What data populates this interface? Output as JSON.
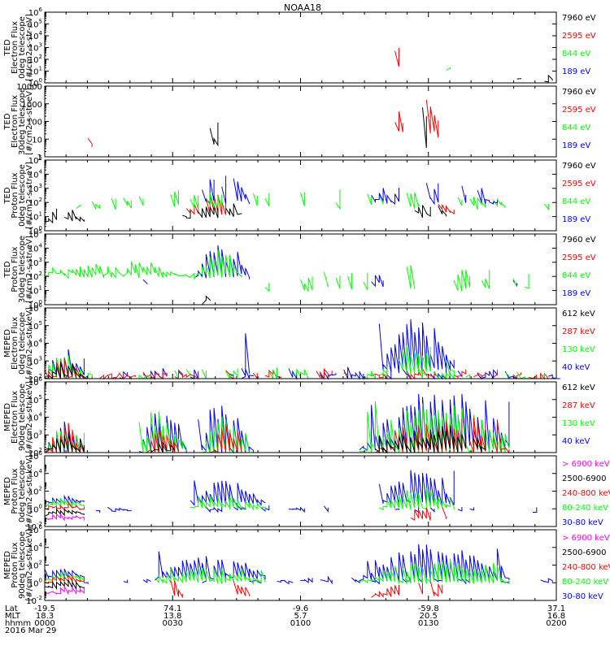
{
  "title": "NOAA18",
  "colors": {
    "black": "#000000",
    "red": "#ff0000",
    "green": "#00ff00",
    "blue": "#0000ff",
    "magenta": "#ff00ff"
  },
  "footer": {
    "row_labels": [
      "Lat",
      "MLT",
      "hhmm",
      "2016 Mar 29"
    ],
    "columns": [
      {
        "lat": "-19.5",
        "mlt": "18.3",
        "hhmm": "0000"
      },
      {
        "lat": "74.1",
        "mlt": "13.8",
        "hhmm": "0030"
      },
      {
        "lat": "-9.6",
        "mlt": "5.7",
        "hhmm": "0100"
      },
      {
        "lat": "-59.8",
        "mlt": "20.5",
        "hhmm": "0130"
      },
      {
        "lat": "37.1",
        "mlt": "16.8",
        "hhmm": "0200"
      }
    ]
  },
  "chart_data": [
    {
      "type": "line",
      "panel": "ted-electron-0deg",
      "log": true,
      "ylim": [
        1,
        1000000
      ],
      "ytick_labels": [
        "10^0",
        "10^1",
        "10^2",
        "10^3",
        "10^4",
        "10^5",
        "10^6"
      ],
      "ylabel": [
        "TED",
        "Electron Flux",
        "0deg telescope",
        "[#/cm2-s-str-eV]"
      ],
      "legend": [
        {
          "label": "7960 eV",
          "color": "black"
        },
        {
          "label": "2595 eV",
          "color": "red"
        },
        {
          "label": "844 eV",
          "color": "green"
        },
        {
          "label": "189 eV",
          "color": "blue"
        }
      ],
      "segments": [
        {
          "color": "black",
          "x0": 0,
          "x1": 10,
          "peak": 1.8,
          "base": 0.3,
          "sparse": 0.9
        },
        {
          "color": "black",
          "x0": 39,
          "x1": 50,
          "peak": 1.8,
          "base": 0.6,
          "sparse": 0.8
        },
        {
          "color": "green",
          "x0": 41,
          "x1": 49,
          "peak": 2.3,
          "base": 1.0,
          "sparse": 0.7
        },
        {
          "color": "red",
          "x0": 41,
          "x1": 49,
          "peak": 3.1,
          "base": 1.3,
          "sparse": 0.7
        },
        {
          "color": "black",
          "x0": 85,
          "x1": 103,
          "peak": 2.1,
          "base": 0.6,
          "sparse": 0.7
        },
        {
          "color": "green",
          "x0": 85,
          "x1": 103,
          "peak": 2.8,
          "base": 1.0,
          "sparse": 0.7
        },
        {
          "color": "red",
          "x0": 85,
          "x1": 103,
          "peak": 4.3,
          "base": 1.2,
          "sparse": 0.7
        },
        {
          "color": "black",
          "x0": 120,
          "x1": 131,
          "peak": 0.6,
          "base": 0.1,
          "sparse": 0.2
        }
      ]
    },
    {
      "type": "line",
      "panel": "ted-electron-30deg",
      "log": true,
      "ylim": [
        1,
        10000
      ],
      "ytick_labels": [
        "1",
        "10",
        "100",
        "1000",
        "10000"
      ],
      "ylabel": [
        "TED",
        "Electron Flux",
        "30deg telescope",
        "[#/cm2-s-str-eV]"
      ],
      "legend": [
        {
          "label": "7960 eV",
          "color": "black"
        },
        {
          "label": "2595 eV",
          "color": "red"
        },
        {
          "label": "844 eV",
          "color": "green"
        },
        {
          "label": "189 eV",
          "color": "blue"
        }
      ],
      "segments": [
        {
          "color": "red",
          "x0": 6,
          "x1": 12,
          "peak": 1.3,
          "base": 0.8,
          "sparse": 0.6
        },
        {
          "color": "black",
          "x0": 6,
          "x1": 20,
          "peak": 1.0,
          "base": 0.4,
          "sparse": 0.7
        },
        {
          "color": "green",
          "x0": 39,
          "x1": 49,
          "peak": 2.1,
          "base": 1.0,
          "sparse": 0.7
        },
        {
          "color": "red",
          "x0": 39,
          "x1": 50,
          "peak": 2.4,
          "base": 1.3,
          "sparse": 0.7
        },
        {
          "color": "black",
          "x0": 39,
          "x1": 49,
          "peak": 1.8,
          "base": 0.5,
          "sparse": 0.7
        },
        {
          "color": "green",
          "x0": 85,
          "x1": 103,
          "peak": 2.7,
          "base": 1.0,
          "sparse": 0.7
        },
        {
          "color": "red",
          "x0": 85,
          "x1": 103,
          "peak": 3.3,
          "base": 1.2,
          "sparse": 0.7
        },
        {
          "color": "black",
          "x0": 85,
          "x1": 103,
          "peak": 2.9,
          "base": 0.6,
          "sparse": 0.7
        }
      ]
    },
    {
      "type": "line",
      "panel": "ted-proton-0deg",
      "log": true,
      "ylim": [
        1,
        100000
      ],
      "ytick_labels": [
        "10^0",
        "10^1",
        "10^2",
        "10^3",
        "10^4",
        "10^5"
      ],
      "ylabel": [
        "TED",
        "Proton Flux",
        "0deg telescope",
        "[#/cm2-s-str-eV]"
      ],
      "legend": [
        {
          "label": "7960 eV",
          "color": "black"
        },
        {
          "label": "2595 eV",
          "color": "red"
        },
        {
          "label": "844 eV",
          "color": "green"
        },
        {
          "label": "189 eV",
          "color": "blue"
        }
      ],
      "segments": [
        {
          "color": "blue",
          "x0": 0,
          "x1": 70,
          "peak": 2.6,
          "base": 1.6,
          "sparse": 0.8
        },
        {
          "color": "black",
          "x0": 0,
          "x1": 10,
          "peak": 1.6,
          "base": 0.6,
          "sparse": 0.2
        },
        {
          "color": "red",
          "x0": 35,
          "x1": 50,
          "peak": 2.6,
          "base": 1.2,
          "sparse": 0.3
        },
        {
          "color": "black",
          "x0": 35,
          "x1": 50,
          "peak": 2.0,
          "base": 1.0,
          "sparse": 0.3
        },
        {
          "color": "blue",
          "x0": 38,
          "x1": 52,
          "peak": 4.4,
          "base": 2.0,
          "sparse": 0.1
        },
        {
          "color": "green",
          "x0": 0,
          "x1": 131,
          "peak": 2.9,
          "base": 1.6,
          "sparse": 0.5
        },
        {
          "color": "blue",
          "x0": 83,
          "x1": 115,
          "peak": 3.6,
          "base": 2.0,
          "sparse": 0.3
        },
        {
          "color": "red",
          "x0": 85,
          "x1": 104,
          "peak": 2.3,
          "base": 1.3,
          "sparse": 0.4
        },
        {
          "color": "black",
          "x0": 88,
          "x1": 104,
          "peak": 1.8,
          "base": 1.0,
          "sparse": 0.4
        }
      ]
    },
    {
      "type": "line",
      "panel": "ted-proton-30deg",
      "log": true,
      "ylim": [
        1,
        100000
      ],
      "ytick_labels": [
        "10^0",
        "10^1",
        "10^2",
        "10^3",
        "10^4",
        "10^5"
      ],
      "ylabel": [
        "TED",
        "Proton Flux",
        "30deg telescope",
        "[#/cm2-s-str-eV]"
      ],
      "legend": [
        {
          "label": "7960 eV",
          "color": "black"
        },
        {
          "label": "2595 eV",
          "color": "red"
        },
        {
          "label": "844 eV",
          "color": "green"
        },
        {
          "label": "189 eV",
          "color": "blue"
        }
      ],
      "segments": [
        {
          "color": "blue",
          "x0": 0,
          "x1": 131,
          "peak": 2.0,
          "base": 1.3,
          "sparse": 0.85
        },
        {
          "color": "green",
          "x0": 0,
          "x1": 38,
          "peak": 3.0,
          "base": 2.0,
          "sparse": 0.0
        },
        {
          "color": "blue",
          "x0": 38,
          "x1": 52,
          "peak": 4.6,
          "base": 2.0,
          "sparse": 0.0
        },
        {
          "color": "green",
          "x0": 38,
          "x1": 50,
          "peak": 4.0,
          "base": 2.0,
          "sparse": 0.0
        },
        {
          "color": "green",
          "x0": 52,
          "x1": 131,
          "peak": 2.8,
          "base": 1.0,
          "sparse": 0.55
        },
        {
          "color": "black",
          "x0": 40,
          "x1": 42,
          "peak": 0.6,
          "base": 0.2,
          "sparse": 0.0
        },
        {
          "color": "black",
          "x0": 94,
          "x1": 98,
          "peak": 0.6,
          "base": 0.2,
          "sparse": 0.3
        }
      ]
    },
    {
      "type": "line",
      "panel": "meped-electron-0deg",
      "log": true,
      "ylim": [
        100,
        1000000
      ],
      "ytick_labels": [
        "10^2",
        "10^3",
        "10^4",
        "10^5",
        "10^6"
      ],
      "ylabel": [
        "MEPED",
        "Electron Flux",
        "0deg telescope",
        "[#/cm2-s-str-keV]"
      ],
      "legend": [
        {
          "label": "612 keV",
          "color": "black"
        },
        {
          "label": "287 keV",
          "color": "red"
        },
        {
          "label": "130 keV",
          "color": "green"
        },
        {
          "label": "40 keV",
          "color": "blue"
        }
      ],
      "segments": [
        {
          "color": "blue",
          "x0": 0,
          "x1": 10,
          "peak": 3.8,
          "base": 2.2,
          "sparse": 0.0
        },
        {
          "color": "green",
          "x0": 0,
          "x1": 10,
          "peak": 3.6,
          "base": 2.0,
          "sparse": 0.0
        },
        {
          "color": "red",
          "x0": 0,
          "x1": 10,
          "peak": 3.4,
          "base": 2.0,
          "sparse": 0.0
        },
        {
          "color": "black",
          "x0": 0,
          "x1": 10,
          "peak": 3.0,
          "base": 2.0,
          "sparse": 0.0
        },
        {
          "color": "blue",
          "x0": 10,
          "x1": 131,
          "peak": 2.6,
          "base": 2.0,
          "sparse": 0.35
        },
        {
          "color": "red",
          "x0": 10,
          "x1": 131,
          "peak": 2.5,
          "base": 2.0,
          "sparse": 0.45
        },
        {
          "color": "green",
          "x0": 10,
          "x1": 131,
          "peak": 2.5,
          "base": 2.0,
          "sparse": 0.4
        },
        {
          "color": "blue",
          "x0": 50,
          "x1": 52,
          "peak": 4.5,
          "base": 2.2,
          "sparse": 0.0
        },
        {
          "color": "blue",
          "x0": 85,
          "x1": 104,
          "peak": 5.6,
          "base": 2.4,
          "sparse": 0.05
        },
        {
          "color": "green",
          "x0": 85,
          "x1": 104,
          "peak": 4.0,
          "base": 2.2,
          "sparse": 0.1
        }
      ]
    },
    {
      "type": "line",
      "panel": "meped-electron-90deg",
      "log": true,
      "ylim": [
        100,
        1000000
      ],
      "ytick_labels": [
        "10^2",
        "10^3",
        "10^4",
        "10^5",
        "10^6"
      ],
      "ylabel": [
        "MEPED",
        "Electron Flux",
        "90deg telescope",
        "[#/cm2-s-str-keV]"
      ],
      "legend": [
        {
          "label": "612 keV",
          "color": "black"
        },
        {
          "label": "287 keV",
          "color": "red"
        },
        {
          "label": "130 keV",
          "color": "green"
        },
        {
          "label": "40 keV",
          "color": "blue"
        }
      ],
      "segments": [
        {
          "color": "blue",
          "x0": 0,
          "x1": 10,
          "peak": 3.8,
          "base": 2.0,
          "sparse": 0.0
        },
        {
          "color": "green",
          "x0": 0,
          "x1": 10,
          "peak": 3.6,
          "base": 2.0,
          "sparse": 0.0
        },
        {
          "color": "red",
          "x0": 0,
          "x1": 10,
          "peak": 3.6,
          "base": 2.0,
          "sparse": 0.0
        },
        {
          "color": "black",
          "x0": 0,
          "x1": 10,
          "peak": 3.0,
          "base": 2.0,
          "sparse": 0.0
        },
        {
          "color": "blue",
          "x0": 24,
          "x1": 36,
          "peak": 5.0,
          "base": 2.0,
          "sparse": 0.0
        },
        {
          "color": "green",
          "x0": 24,
          "x1": 36,
          "peak": 4.4,
          "base": 2.0,
          "sparse": 0.0
        },
        {
          "color": "red",
          "x0": 26,
          "x1": 34,
          "peak": 3.6,
          "base": 2.0,
          "sparse": 0.0
        },
        {
          "color": "black",
          "x0": 27,
          "x1": 33,
          "peak": 2.8,
          "base": 2.0,
          "sparse": 0.0
        },
        {
          "color": "blue",
          "x0": 39,
          "x1": 53,
          "peak": 5.0,
          "base": 2.0,
          "sparse": 0.0
        },
        {
          "color": "green",
          "x0": 40,
          "x1": 52,
          "peak": 4.4,
          "base": 2.0,
          "sparse": 0.0
        },
        {
          "color": "red",
          "x0": 42,
          "x1": 50,
          "peak": 3.5,
          "base": 2.0,
          "sparse": 0.0
        },
        {
          "color": "blue",
          "x0": 80,
          "x1": 120,
          "peak": 5.5,
          "base": 2.2,
          "sparse": 0.05
        },
        {
          "color": "green",
          "x0": 80,
          "x1": 120,
          "peak": 5.0,
          "base": 2.0,
          "sparse": 0.05
        },
        {
          "color": "red",
          "x0": 84,
          "x1": 118,
          "peak": 4.0,
          "base": 2.0,
          "sparse": 0.15
        },
        {
          "color": "black",
          "x0": 84,
          "x1": 116,
          "peak": 3.5,
          "base": 2.0,
          "sparse": 0.2
        }
      ]
    },
    {
      "type": "line",
      "panel": "meped-proton-0deg",
      "log": true,
      "ylim": [
        0.01,
        1000000
      ],
      "ytick_labels": [
        "10^-2",
        "10^0",
        "10^2",
        "10^4",
        "10^6"
      ],
      "ylabel": [
        "MEPED",
        "Proton Flux",
        "0deg telescope",
        "[#/cm2-s-str-keV]"
      ],
      "legend": [
        {
          "label": "> 6900 keV",
          "color": "magenta"
        },
        {
          "label": "2500-6900",
          "color": "black"
        },
        {
          "label": "240-800 keV",
          "color": "red"
        },
        {
          "label": "80-240 keV",
          "color": "green"
        },
        {
          "label": "30-80 keV",
          "color": "blue"
        }
      ],
      "segments": [
        {
          "color": "blue",
          "x0": 0,
          "x1": 10,
          "peak": 1.5,
          "base": 0.6,
          "sparse": 0.0
        },
        {
          "color": "green",
          "x0": 0,
          "x1": 10,
          "peak": 1.0,
          "base": 0.3,
          "sparse": 0.0
        },
        {
          "color": "red",
          "x0": 0,
          "x1": 10,
          "peak": 0.5,
          "base": 0.0,
          "sparse": 0.0
        },
        {
          "color": "black",
          "x0": 0,
          "x1": 10,
          "peak": 0.0,
          "base": -0.6,
          "sparse": 0.0
        },
        {
          "color": "magenta",
          "x0": 0,
          "x1": 10,
          "peak": -0.6,
          "base": -1.2,
          "sparse": 0.0
        },
        {
          "color": "blue",
          "x0": 10,
          "x1": 131,
          "peak": 0.3,
          "base": -0.3,
          "sparse": 0.55
        },
        {
          "color": "blue",
          "x0": 37,
          "x1": 56,
          "peak": 3.5,
          "base": 0.5,
          "sparse": 0.0
        },
        {
          "color": "green",
          "x0": 37,
          "x1": 56,
          "peak": 1.5,
          "base": 0.0,
          "sparse": 0.1
        },
        {
          "color": "blue",
          "x0": 85,
          "x1": 104,
          "peak": 4.8,
          "base": 0.5,
          "sparse": 0.0
        },
        {
          "color": "green",
          "x0": 85,
          "x1": 104,
          "peak": 2.5,
          "base": 0.0,
          "sparse": 0.05
        },
        {
          "color": "red",
          "x0": 88,
          "x1": 102,
          "peak": 0.2,
          "base": -1.2,
          "sparse": 0.4
        }
      ]
    },
    {
      "type": "line",
      "panel": "meped-proton-90deg",
      "log": true,
      "ylim": [
        0.01,
        1000000
      ],
      "ytick_labels": [
        "10^-2",
        "10^0",
        "10^2",
        "10^4",
        "10^6"
      ],
      "ylabel": [
        "MEPED",
        "Proton Flux",
        "90deg telescope",
        "[#/cm2-s-str-keV]"
      ],
      "legend": [
        {
          "label": "> 6900 keV",
          "color": "magenta"
        },
        {
          "label": "2500-6900",
          "color": "black"
        },
        {
          "label": "240-800 keV",
          "color": "red"
        },
        {
          "label": "80-240 keV",
          "color": "green"
        },
        {
          "label": "30-80 keV",
          "color": "blue"
        }
      ],
      "segments": [
        {
          "color": "blue",
          "x0": 0,
          "x1": 10,
          "peak": 1.6,
          "base": 0.6,
          "sparse": 0.0
        },
        {
          "color": "green",
          "x0": 0,
          "x1": 10,
          "peak": 1.2,
          "base": 0.3,
          "sparse": 0.0
        },
        {
          "color": "red",
          "x0": 0,
          "x1": 10,
          "peak": 0.8,
          "base": 0.0,
          "sparse": 0.0
        },
        {
          "color": "black",
          "x0": 0,
          "x1": 10,
          "peak": 0.2,
          "base": -0.6,
          "sparse": 0.0
        },
        {
          "color": "magenta",
          "x0": 0,
          "x1": 10,
          "peak": -0.4,
          "base": -1.2,
          "sparse": 0.0
        },
        {
          "color": "blue",
          "x0": 10,
          "x1": 131,
          "peak": 0.5,
          "base": 0.0,
          "sparse": 0.45
        },
        {
          "color": "blue",
          "x0": 28,
          "x1": 56,
          "peak": 3.6,
          "base": 0.5,
          "sparse": 0.0
        },
        {
          "color": "green",
          "x0": 28,
          "x1": 56,
          "peak": 1.8,
          "base": 0.0,
          "sparse": 0.0
        },
        {
          "color": "red",
          "x0": 30,
          "x1": 35,
          "peak": 0.4,
          "base": -1.5,
          "sparse": 0.2
        },
        {
          "color": "red",
          "x0": 45,
          "x1": 52,
          "peak": 0.4,
          "base": -1.5,
          "sparse": 0.2
        },
        {
          "color": "blue",
          "x0": 80,
          "x1": 118,
          "peak": 4.5,
          "base": 0.3,
          "sparse": 0.0
        },
        {
          "color": "green",
          "x0": 80,
          "x1": 118,
          "peak": 2.8,
          "base": 0.0,
          "sparse": 0.0
        },
        {
          "color": "red",
          "x0": 83,
          "x1": 112,
          "peak": 0.5,
          "base": -1.5,
          "sparse": 0.3
        }
      ]
    }
  ]
}
